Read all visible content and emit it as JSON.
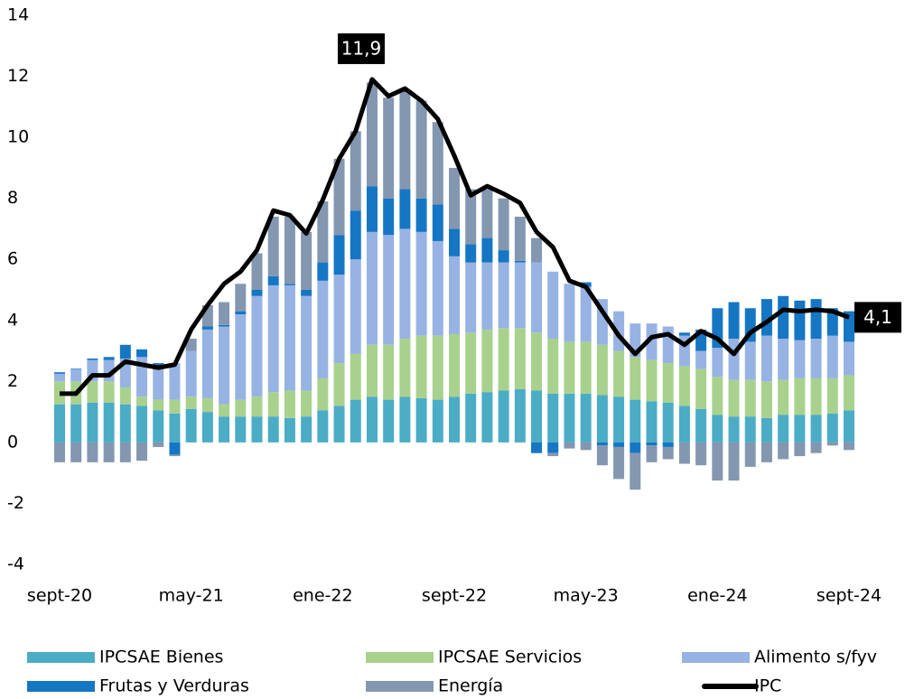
{
  "chart_data": {
    "type": "bar",
    "categories": [
      "sept-20",
      null,
      null,
      null,
      null,
      null,
      null,
      null,
      "may-21",
      null,
      null,
      null,
      null,
      null,
      null,
      null,
      "ene-22",
      null,
      null,
      null,
      null,
      null,
      null,
      null,
      "sept-22",
      null,
      null,
      null,
      null,
      null,
      null,
      null,
      "may-23",
      null,
      null,
      null,
      null,
      null,
      null,
      null,
      "ene-24",
      null,
      null,
      null,
      null,
      null,
      null,
      null,
      "sept-24"
    ],
    "ylim": [
      -4,
      14
    ],
    "yticks": [
      -4,
      -2,
      0,
      2,
      4,
      6,
      8,
      10,
      12,
      14
    ],
    "stacked": true,
    "grid": false,
    "series": [
      {
        "name": "IPCSAE Bienes",
        "color": "#4bacc6",
        "values": [
          1.25,
          1.25,
          1.3,
          1.3,
          1.25,
          1.2,
          1.05,
          0.95,
          1.1,
          1.0,
          0.85,
          0.85,
          0.85,
          0.85,
          0.8,
          0.85,
          1.05,
          1.2,
          1.4,
          1.5,
          1.4,
          1.5,
          1.45,
          1.4,
          1.5,
          1.6,
          1.65,
          1.7,
          1.75,
          1.7,
          1.6,
          1.6,
          1.6,
          1.55,
          1.5,
          1.4,
          1.35,
          1.3,
          1.2,
          1.1,
          0.9,
          0.85,
          0.85,
          0.8,
          0.9,
          0.9,
          0.9,
          0.95,
          1.05
        ]
      },
      {
        "name": "IPCSAE Servicios",
        "color": "#a9d18e",
        "values": [
          0.75,
          0.75,
          0.7,
          0.7,
          0.55,
          0.3,
          0.35,
          0.45,
          0.4,
          0.45,
          0.4,
          0.55,
          0.65,
          0.8,
          0.9,
          0.85,
          1.05,
          1.4,
          1.5,
          1.7,
          1.8,
          1.9,
          2.05,
          2.1,
          2.05,
          2.0,
          2.05,
          2.05,
          2.0,
          1.9,
          1.8,
          1.7,
          1.7,
          1.65,
          1.5,
          1.4,
          1.35,
          1.3,
          1.3,
          1.3,
          1.25,
          1.2,
          1.2,
          1.2,
          1.15,
          1.2,
          1.2,
          1.15,
          1.15
        ]
      },
      {
        "name": "Alimento s/fyv",
        "color": "#97b3e3",
        "values": [
          0.25,
          0.4,
          0.7,
          0.7,
          0.95,
          1.3,
          1.1,
          1.2,
          1.5,
          2.25,
          2.55,
          2.8,
          3.3,
          3.5,
          3.45,
          3.1,
          3.2,
          2.9,
          3.1,
          3.7,
          3.6,
          3.6,
          3.4,
          3.1,
          2.55,
          2.3,
          2.2,
          2.15,
          2.15,
          2.3,
          2.2,
          1.9,
          1.8,
          1.5,
          1.3,
          1.1,
          1.2,
          1.2,
          1.0,
          0.6,
          0.95,
          1.35,
          1.25,
          1.5,
          1.35,
          1.25,
          1.3,
          1.4,
          1.1
        ]
      },
      {
        "name": "Frutas y Verduras",
        "color": "#1576c4",
        "values": [
          0.05,
          0.02,
          0.05,
          0.1,
          0.45,
          0.25,
          0.1,
          -0.4,
          0.0,
          0.1,
          0.05,
          0.1,
          0.2,
          0.3,
          0.05,
          0.2,
          0.6,
          1.3,
          1.6,
          1.5,
          1.2,
          1.3,
          1.1,
          1.2,
          0.9,
          0.6,
          0.8,
          0.4,
          0.05,
          -0.35,
          -0.35,
          0.0,
          0.15,
          -0.1,
          -0.15,
          -0.35,
          -0.1,
          -0.15,
          0.1,
          0.7,
          1.3,
          1.2,
          1.1,
          1.2,
          1.4,
          1.3,
          1.3,
          0.9,
          1.0
        ]
      },
      {
        "name": "Energía",
        "color": "#8497b0",
        "values": [
          -0.65,
          -0.65,
          -0.65,
          -0.65,
          -0.65,
          -0.6,
          -0.15,
          -0.05,
          0.4,
          0.7,
          0.75,
          0.9,
          1.2,
          1.95,
          2.2,
          1.9,
          2.0,
          2.5,
          2.6,
          3.4,
          3.3,
          3.2,
          3.2,
          2.7,
          2.0,
          1.8,
          1.6,
          1.7,
          1.45,
          0.8,
          -0.1,
          -0.2,
          -0.25,
          -0.65,
          -1.05,
          -1.2,
          -0.55,
          -0.4,
          -0.7,
          -0.75,
          -1.25,
          -1.25,
          -0.8,
          -0.65,
          -0.55,
          -0.45,
          -0.35,
          -0.1,
          -0.25
        ]
      },
      {
        "name": "IPC",
        "color": "#000000",
        "kind": "line",
        "values": [
          1.6,
          1.6,
          2.2,
          2.2,
          2.65,
          2.55,
          2.45,
          2.55,
          3.7,
          4.5,
          5.2,
          5.6,
          6.3,
          7.6,
          7.45,
          6.85,
          7.95,
          9.3,
          10.2,
          11.9,
          11.35,
          11.6,
          11.2,
          10.6,
          9.4,
          8.1,
          8.4,
          8.15,
          7.85,
          6.9,
          6.4,
          5.3,
          5.1,
          4.3,
          3.5,
          2.9,
          3.45,
          3.55,
          3.2,
          3.65,
          3.4,
          2.9,
          3.6,
          3.95,
          4.35,
          4.3,
          4.35,
          4.3,
          4.1
        ],
        "value_labels": [
          null,
          null,
          null,
          null,
          null,
          null,
          null,
          null,
          null,
          null,
          null,
          null,
          null,
          null,
          null,
          null,
          null,
          null,
          null,
          "11,9",
          null,
          null,
          null,
          null,
          null,
          null,
          null,
          null,
          null,
          null,
          null,
          null,
          null,
          null,
          null,
          null,
          null,
          null,
          null,
          null,
          null,
          null,
          null,
          null,
          null,
          null,
          null,
          null,
          "4,1"
        ]
      }
    ]
  }
}
